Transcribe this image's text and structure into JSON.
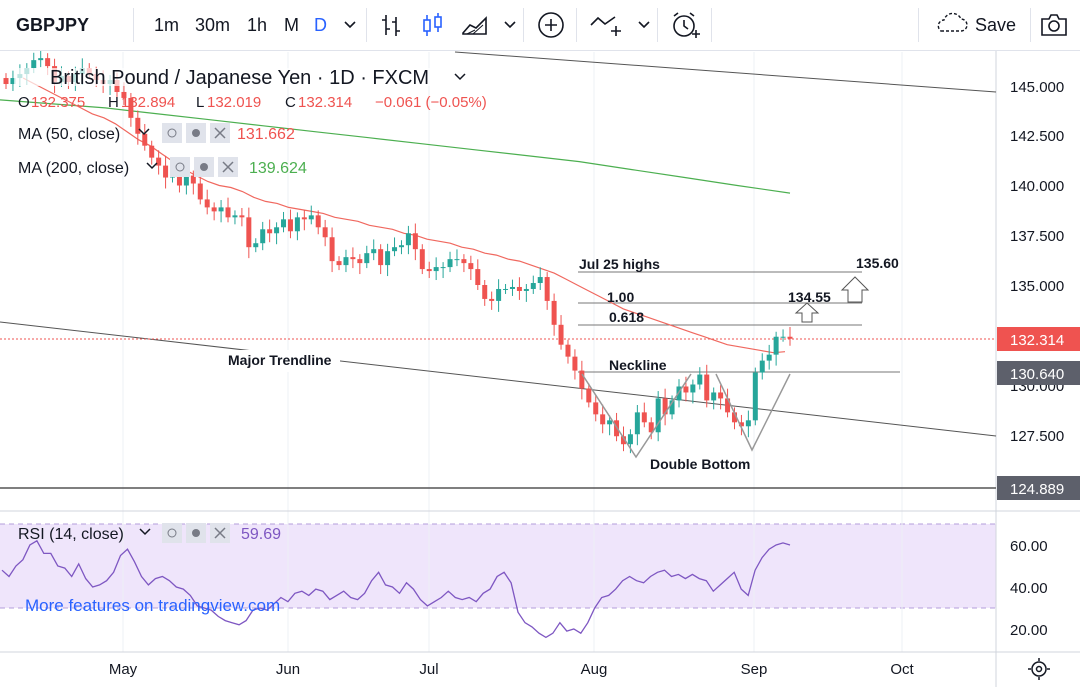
{
  "toolbar": {
    "symbol": "GBPJPY",
    "intervals": [
      "1m",
      "30m",
      "1h",
      "M",
      "D"
    ],
    "active_interval": "D",
    "save_label": "Save"
  },
  "legend": {
    "title": "British Pound / Japanese Yen · 1D · FXCM",
    "ohlc": {
      "O": "132.375",
      "H": "132.894",
      "L": "132.019",
      "C": "132.314",
      "chg": "−0.061 (−0.05%)"
    },
    "ma50": {
      "label": "MA (50, close)",
      "value": "131.662",
      "color": "#f0685f"
    },
    "ma200": {
      "label": "MA (200, close)",
      "value": "139.624",
      "color": "#4caf50"
    },
    "rsi": {
      "label": "RSI (14, close)",
      "value": "59.69",
      "color": "#7e57c2"
    }
  },
  "annotations": {
    "jul25": "Jul 25 highs",
    "fib100": "1.00",
    "fib618": "0.618",
    "target1": "134.55",
    "target2": "135.60",
    "neckline": "Neckline",
    "major_trendline": "Major Trendline",
    "double_bottom": "Double Bottom",
    "watermark": "More features on tradingview.com"
  },
  "chart_data": {
    "type": "candlestick",
    "title": "British Pound / Japanese Yen · 1D · FXCM",
    "x_labels": [
      "May",
      "Jun",
      "Jul",
      "Aug",
      "Sep",
      "Oct"
    ],
    "y_ticks": [
      "145.000",
      "142.500",
      "140.000",
      "137.500",
      "135.000",
      "130.000",
      "127.500"
    ],
    "price_labels": {
      "last": "132.314",
      "neckline": "130.640",
      "low_line": "124.889"
    },
    "rsi_ticks": [
      "60.00",
      "40.00",
      "20.00"
    ],
    "rsi_band": [
      30,
      70
    ],
    "closes": [
      145.1,
      145.4,
      145.6,
      145.9,
      146.3,
      146.4,
      146.0,
      145.2,
      145.5,
      145.2,
      145.6,
      145.9,
      145.6,
      145.3,
      145.1,
      145.3,
      144.7,
      144.4,
      143.4,
      142.6,
      142.0,
      141.4,
      141.0,
      140.4,
      140.6,
      140.0,
      140.5,
      140.1,
      139.3,
      138.9,
      138.7,
      138.9,
      138.4,
      138.5,
      138.4,
      136.9,
      137.1,
      137.8,
      137.6,
      137.9,
      138.3,
      137.7,
      138.4,
      138.3,
      138.5,
      137.9,
      137.4,
      136.2,
      136.0,
      136.4,
      136.3,
      136.1,
      136.6,
      136.8,
      136.0,
      136.7,
      136.9,
      137.0,
      137.6,
      136.8,
      135.8,
      135.7,
      135.9,
      135.9,
      136.3,
      136.3,
      136.1,
      135.8,
      135.0,
      134.3,
      134.2,
      134.8,
      134.8,
      134.9,
      134.7,
      134.8,
      135.1,
      135.4,
      134.2,
      133.0,
      132.0,
      131.4,
      130.7,
      129.8,
      129.1,
      128.5,
      128.0,
      128.2,
      127.4,
      127.0,
      127.5,
      128.6,
      128.1,
      127.6,
      129.3,
      128.5,
      129.2,
      129.9,
      129.6,
      130.0,
      130.5,
      129.2,
      129.6,
      129.3,
      128.6,
      128.1,
      127.9,
      128.2,
      130.6,
      131.2,
      131.5,
      132.4,
      132.4,
      132.3
    ],
    "ma50": [
      null,
      null,
      145.4,
      145.1,
      144.8,
      144.5,
      144.2,
      143.9,
      143.6,
      143.4,
      143.1,
      142.7,
      142.3,
      142.0,
      141.6,
      141.2,
      140.8,
      140.5,
      140.2,
      140.0,
      139.9,
      139.7,
      139.4,
      139.2,
      139.1,
      138.9,
      138.8,
      138.7,
      138.6,
      138.4,
      138.3,
      138.2,
      138.0,
      137.9,
      137.8,
      137.6,
      137.5,
      137.3,
      137.2,
      137.1,
      136.9,
      136.8,
      136.6,
      136.5,
      136.3,
      136.2,
      136.0,
      135.8,
      135.6,
      135.3,
      135.0,
      134.7,
      134.4,
      134.1,
      133.8,
      133.6,
      133.4,
      133.2,
      133.0,
      132.8,
      132.6,
      132.4,
      132.2,
      132.0,
      131.9,
      131.8,
      131.7,
      131.6,
      131.65
    ],
    "ma200": [
      144.3,
      144.1,
      143.9,
      143.6,
      143.3,
      143.0,
      142.7,
      142.4,
      142.1,
      141.8,
      141.5,
      141.2,
      140.8,
      140.4,
      140.0,
      139.62
    ],
    "rsi": [
      48,
      45,
      50,
      53,
      60,
      62,
      56,
      56,
      50,
      49,
      45,
      51,
      44,
      40,
      41,
      43,
      47,
      55,
      58,
      52,
      45,
      41,
      44,
      45,
      43,
      40,
      39,
      36,
      31,
      30,
      29,
      26,
      24,
      23,
      22,
      24,
      29,
      30,
      29,
      32,
      35,
      33,
      37,
      38,
      36,
      39,
      38,
      34,
      36,
      38,
      35,
      34,
      37,
      43,
      47,
      41,
      40,
      37,
      42,
      39,
      34,
      31,
      33,
      35,
      38,
      35,
      34,
      35,
      33,
      37,
      39,
      45,
      47,
      42,
      28,
      23,
      21,
      18,
      16,
      18,
      23,
      19,
      20,
      18,
      23,
      30,
      35,
      36,
      39,
      43,
      45,
      43,
      42,
      45,
      47,
      48,
      45,
      46,
      44,
      46,
      44,
      43,
      38,
      41,
      44,
      47,
      39,
      36,
      48,
      54,
      58,
      60,
      61,
      60
    ]
  }
}
